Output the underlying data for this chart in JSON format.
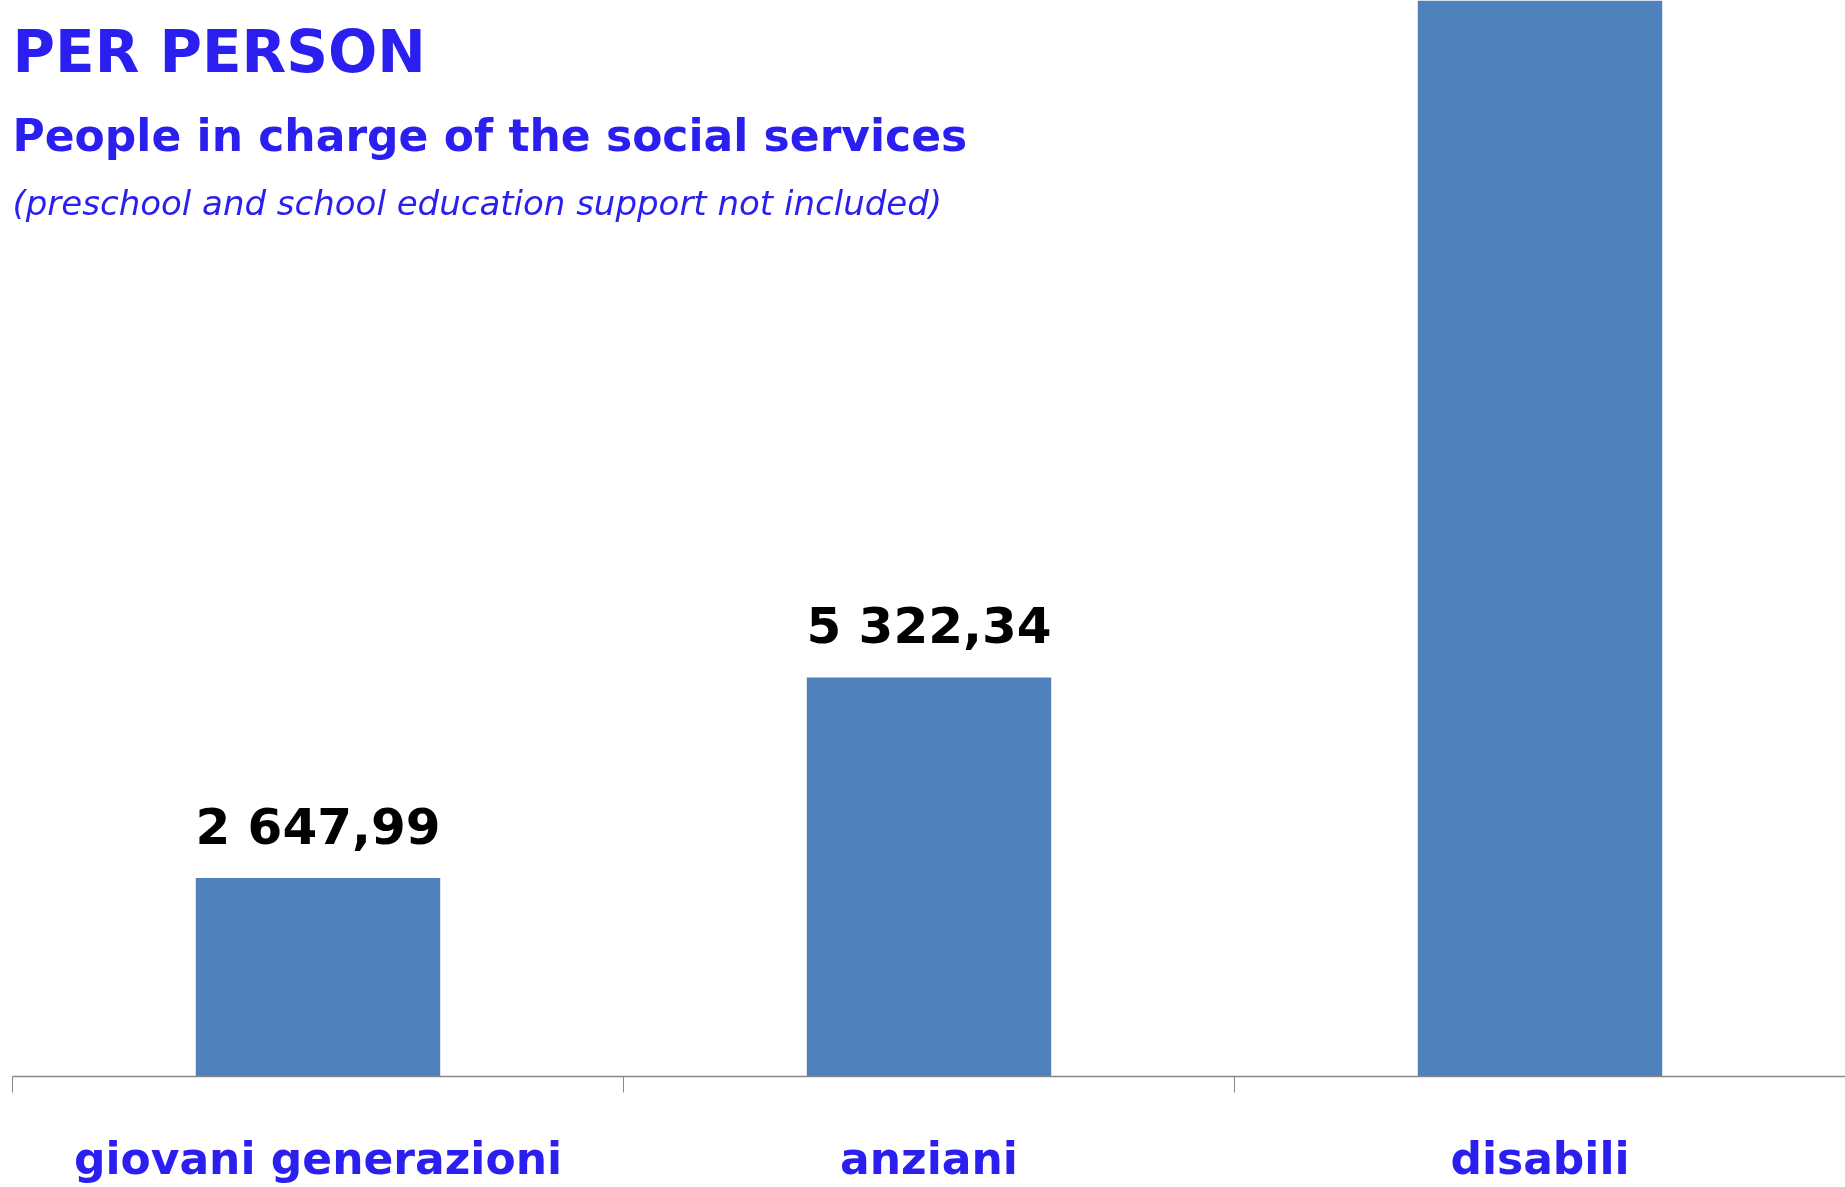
{
  "chart_data": {
    "type": "bar",
    "title": "PER PERSON",
    "subtitle": "People in charge of the social services",
    "annotations": [
      "(preschool and school education support not included)"
    ],
    "categories": [
      "giovani generazioni",
      "anziani",
      "disabili"
    ],
    "values": [
      2647.99,
      5322.34,
      14350
    ],
    "value_labels": [
      "2 647,99",
      "5 322,34",
      null
    ],
    "color": "#4f81bd",
    "ylim": [
      0,
      14350
    ],
    "grid": false
  }
}
